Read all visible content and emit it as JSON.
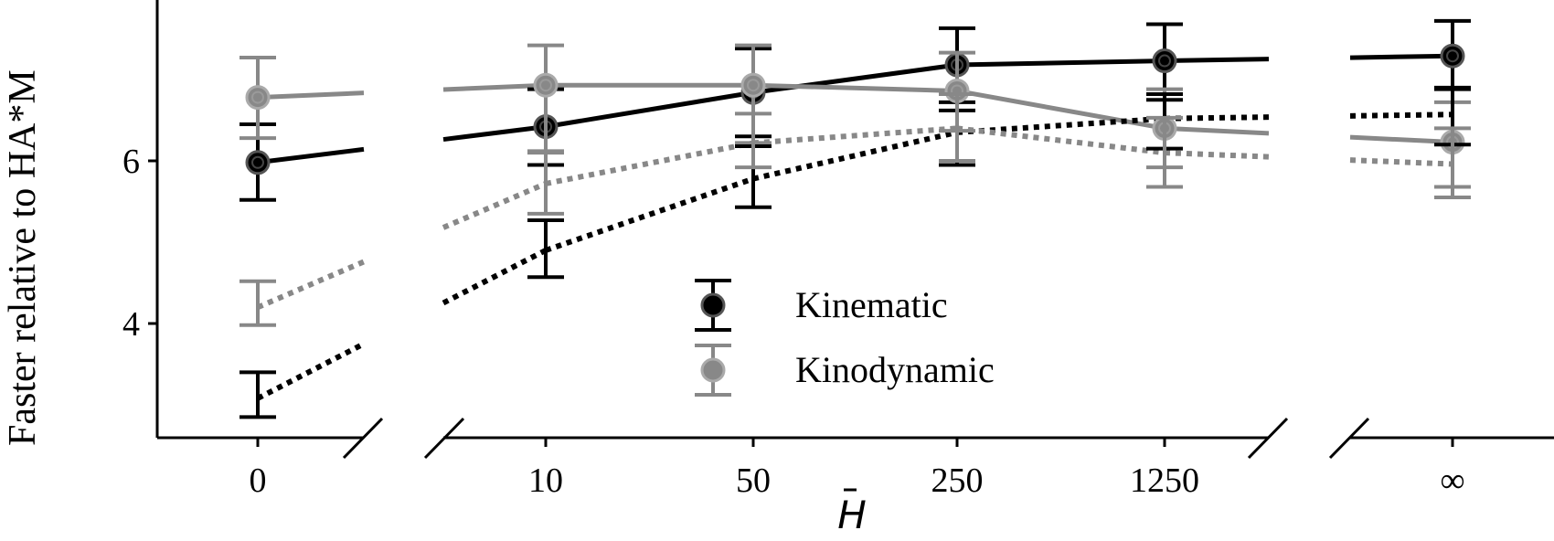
{
  "chart_data": {
    "type": "line",
    "title": "",
    "xlabel": "H",
    "xlabel_accent": "bar",
    "ylabel": "Faster relative to HA*M",
    "categories": [
      "0",
      "10",
      "50",
      "250",
      "1250",
      "∞"
    ],
    "ylim": [
      2.7,
      8.0
    ],
    "yticks": [
      4,
      6
    ],
    "y_tick_labels": [
      "4",
      "6"
    ],
    "grid": false,
    "broken_x_axis": true,
    "axis_breaks": [
      "between 0 and 10",
      "between 1250 and ∞"
    ],
    "legend": {
      "placement": "lower-center",
      "entries": [
        "Kinematic",
        "Kinodynamic"
      ]
    },
    "colors": {
      "kinematic": "#000000",
      "kinodynamic": "#888888"
    },
    "series": [
      {
        "name": "Kinematic",
        "metric": "solid",
        "line_style": "solid",
        "color": "#000000",
        "marker": true,
        "values": [
          5.98,
          6.42,
          6.84,
          7.18,
          7.23,
          7.29
        ],
        "err_low": [
          5.52,
          5.95,
          6.3,
          6.72,
          6.75,
          6.9
        ],
        "err_high": [
          6.45,
          6.88,
          7.38,
          7.63,
          7.68,
          7.72
        ]
      },
      {
        "name": "Kinodynamic",
        "metric": "solid",
        "line_style": "solid",
        "color": "#888888",
        "marker": true,
        "values": [
          6.78,
          6.93,
          6.93,
          6.86,
          6.4,
          6.23
        ],
        "err_low": [
          6.28,
          6.12,
          6.22,
          6.37,
          5.92,
          5.68
        ],
        "err_high": [
          7.27,
          7.42,
          7.42,
          7.33,
          6.88,
          6.72
        ]
      },
      {
        "name": "Kinematic",
        "metric": "dotted",
        "line_style": "dotted",
        "color": "#000000",
        "marker": false,
        "values": [
          3.08,
          4.9,
          5.78,
          6.35,
          6.52,
          6.57
        ],
        "err_low": [
          2.85,
          4.57,
          5.43,
          5.95,
          6.15,
          6.2
        ],
        "err_high": [
          3.4,
          5.27,
          6.18,
          6.62,
          6.82,
          6.88
        ]
      },
      {
        "name": "Kinodynamic",
        "metric": "dotted",
        "line_style": "dotted",
        "color": "#888888",
        "marker": false,
        "values": [
          4.2,
          5.72,
          6.22,
          6.4,
          6.1,
          5.96
        ],
        "err_low": [
          3.98,
          5.35,
          5.92,
          6.0,
          5.68,
          5.55
        ],
        "err_high": [
          4.52,
          6.1,
          6.58,
          6.82,
          6.53,
          6.4
        ]
      }
    ]
  }
}
